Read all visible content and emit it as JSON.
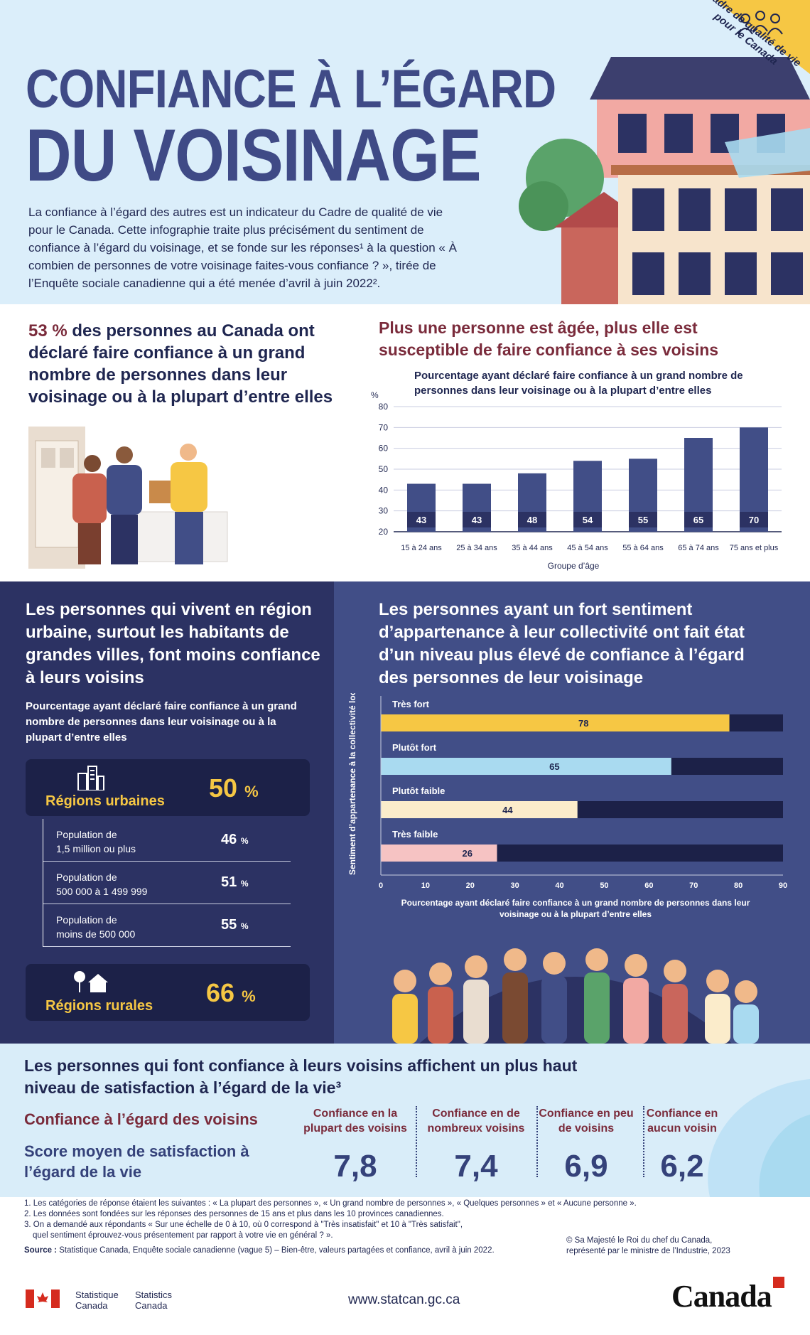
{
  "header": {
    "title_line1": "CONFIANCE À L’ÉGARD",
    "title_line2": "DU VOISINAGE",
    "intro": "La confiance à l’égard des autres est un indicateur du Cadre de qualité de vie pour le Canada. Cette infographie traite plus précisément du sentiment de confiance à l’égard du voisinage, et se fonde sur les réponses¹ à la question « À combien de personnes de votre voisinage faites-vous confiance ? », tirée de l’Enquête sociale canadienne qui a été menée d’avril à juin 2022².",
    "banner": "Cadre de qualité de vie pour le Canada"
  },
  "stat53": {
    "pct": "53 %",
    "text": " des personnes au Canada ont déclaré faire confiance à un grand nombre de personnes dans leur voisinage ou à la plupart d’entre elles"
  },
  "age_section": {
    "title": "Plus une personne est âgée, plus elle est susceptible de faire confiance à ses voisins",
    "subtitle": "Pourcentage ayant déclaré faire confiance à un grand nombre de personnes dans leur voisinage ou à la plupart d’entre elles"
  },
  "urban_section": {
    "title": "Les personnes qui vivent en région urbaine, surtout les habitants de grandes villes, font moins confiance à leurs voisins",
    "subtitle": "Pourcentage ayant déclaré faire confiance à un grand nombre de personnes dans leur voisinage ou à la plupart d’entre elles",
    "urban_label": "Régions urbaines",
    "urban_value": "50",
    "rural_label": "Régions rurales",
    "rural_value": "66",
    "pct_sign": "%",
    "pop_rows": [
      {
        "line1": "Population de",
        "line2": "1,5 million ou plus",
        "value": "46"
      },
      {
        "line1": "Population de",
        "line2": "500 000 à 1 499 999",
        "value": "51"
      },
      {
        "line1": "Population de",
        "line2": "moins de 500 000",
        "value": "55"
      }
    ]
  },
  "belonging_section": {
    "title": "Les personnes ayant un fort sentiment d’appartenance à leur collectivité ont fait état d’un niveau plus élevé de confiance à l’égard des personnes de leur voisinage"
  },
  "life_section": {
    "title": "Les personnes qui font confiance à leurs voisins affichent un plus haut niveau de satisfaction à l’égard de la vie³",
    "trust_label": "Confiance à l’égard des voisins",
    "score_label": "Score moyen de satisfaction à l’égard de la vie",
    "columns": [
      {
        "head": "Confiance en la plupart des voisins",
        "value": "7,8"
      },
      {
        "head": "Confiance en de nombreux voisins",
        "value": "7,4"
      },
      {
        "head": "Confiance en peu de voisins",
        "value": "6,9"
      },
      {
        "head": "Confiance en aucun voisin",
        "value": "6,2"
      }
    ]
  },
  "footer": {
    "notes": [
      "1.  Les catégories de réponse étaient les suivantes : « La plupart des personnes », « Un grand nombre de personnes », « Quelques personnes » et « Aucune personne ».",
      "2.  Les données sont fondées sur les réponses des personnes de 15 ans et plus dans les 10 provinces canadiennes.",
      "3.  On a demandé aux répondants « Sur une échelle de 0 à 10, où 0 correspond à \"Très insatisfait\" et 10 à \"Très satisfait\",",
      "     quel sentiment éprouvez-vous présentement par rapport à votre vie en général ? »."
    ],
    "source_label": "Source :",
    "source_text": " Statistique Canada, Enquête sociale canadienne (vague 5) – Bien-être, valeurs partagées et confiance, avril à juin 2022.",
    "copyright_line1": "© Sa Majesté le Roi du chef du Canada,",
    "copyright_line2": "représenté par le ministre de l’Industrie, 2023",
    "stat_fr_1": "Statistique",
    "stat_fr_2": "Canada",
    "stat_en_1": "Statistics",
    "stat_en_2": "Canada",
    "url": "www.statcan.gc.ca",
    "wordmark": "Canada"
  },
  "colors": {
    "navy": "#3f4a86",
    "dark_navy": "#2c3263",
    "maroon": "#7a2b3b",
    "yellow": "#f6c744",
    "light_blue": "#dbeefa",
    "bar_blue": "#414e87"
  },
  "chart_data": [
    {
      "type": "bar",
      "title": "Pourcentage ayant déclaré faire confiance à un grand nombre de personnes dans leur voisinage ou à la plupart d’entre elles",
      "unit_label": "%",
      "xlabel": "Groupe d’âge",
      "ylabel": "%",
      "categories": [
        "15 à 24 ans",
        "25 à 34 ans",
        "35 à 44 ans",
        "45 à 54 ans",
        "55 à 64 ans",
        "65 à 74 ans",
        "75 ans et plus"
      ],
      "values": [
        43,
        43,
        48,
        54,
        55,
        65,
        70
      ],
      "ylim": [
        20,
        80
      ],
      "yticks": [
        20,
        30,
        40,
        50,
        60,
        70,
        80
      ],
      "grid": true
    },
    {
      "type": "bar",
      "orientation": "horizontal",
      "title": "Pourcentage ayant déclaré faire confiance à un grand nombre de personnes dans leur voisinage ou à la plupart d’entre elles",
      "ylabel": "Sentiment d’appartenance à la collectivité locale",
      "categories": [
        "Très fort",
        "Plutôt fort",
        "Plutôt faible",
        "Très faible"
      ],
      "values": [
        78,
        65,
        44,
        26
      ],
      "bar_colors": [
        "#f6c744",
        "#a9daf0",
        "#fbeccb",
        "#f6c3c3"
      ],
      "xlim": [
        0,
        90
      ],
      "xticks": [
        0,
        10,
        20,
        30,
        40,
        50,
        60,
        70,
        80,
        90
      ]
    }
  ]
}
